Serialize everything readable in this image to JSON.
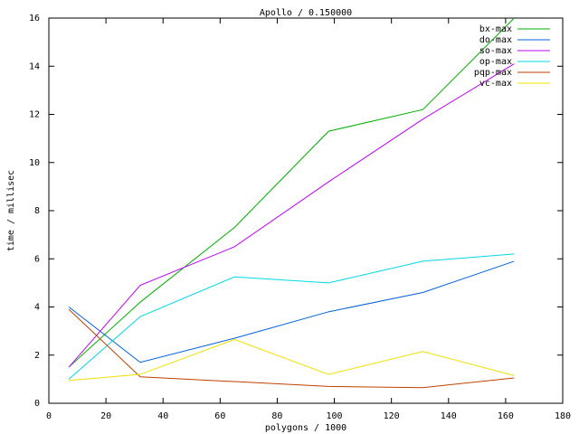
{
  "chart_data": {
    "type": "line",
    "title": "Apollo / 0.150000",
    "x_label": "polygons / 1000",
    "y_label": "time / millisec",
    "x": [
      7,
      32,
      65,
      98,
      131,
      163
    ],
    "series": [
      {
        "name": "bx-max",
        "color": "#00b000",
        "values": [
          1.5,
          4.2,
          7.3,
          11.3,
          12.2,
          16.0
        ]
      },
      {
        "name": "do-max",
        "color": "#0060e0",
        "values": [
          4.0,
          1.7,
          2.7,
          3.8,
          4.6,
          5.9
        ]
      },
      {
        "name": "so-max",
        "color": "#c000ff",
        "values": [
          1.5,
          4.9,
          6.5,
          9.2,
          11.8,
          14.1
        ]
      },
      {
        "name": "op-max",
        "color": "#00d8e0",
        "values": [
          1.0,
          3.6,
          5.25,
          5.0,
          5.9,
          6.2
        ]
      },
      {
        "name": "pqp-max",
        "color": "#c04000",
        "values": [
          3.9,
          1.1,
          0.9,
          0.7,
          0.65,
          1.05
        ]
      },
      {
        "name": "vc-max",
        "color": "#f0e000",
        "values": [
          0.95,
          1.2,
          2.65,
          1.2,
          2.15,
          1.15
        ]
      }
    ],
    "xlim": [
      0,
      180
    ],
    "xticks": [
      0,
      20,
      40,
      60,
      80,
      100,
      120,
      140,
      160,
      180
    ],
    "ylim": [
      0,
      16
    ],
    "yticks": [
      0,
      2,
      4,
      6,
      8,
      10,
      12,
      14,
      16
    ],
    "legend": "top-right"
  }
}
